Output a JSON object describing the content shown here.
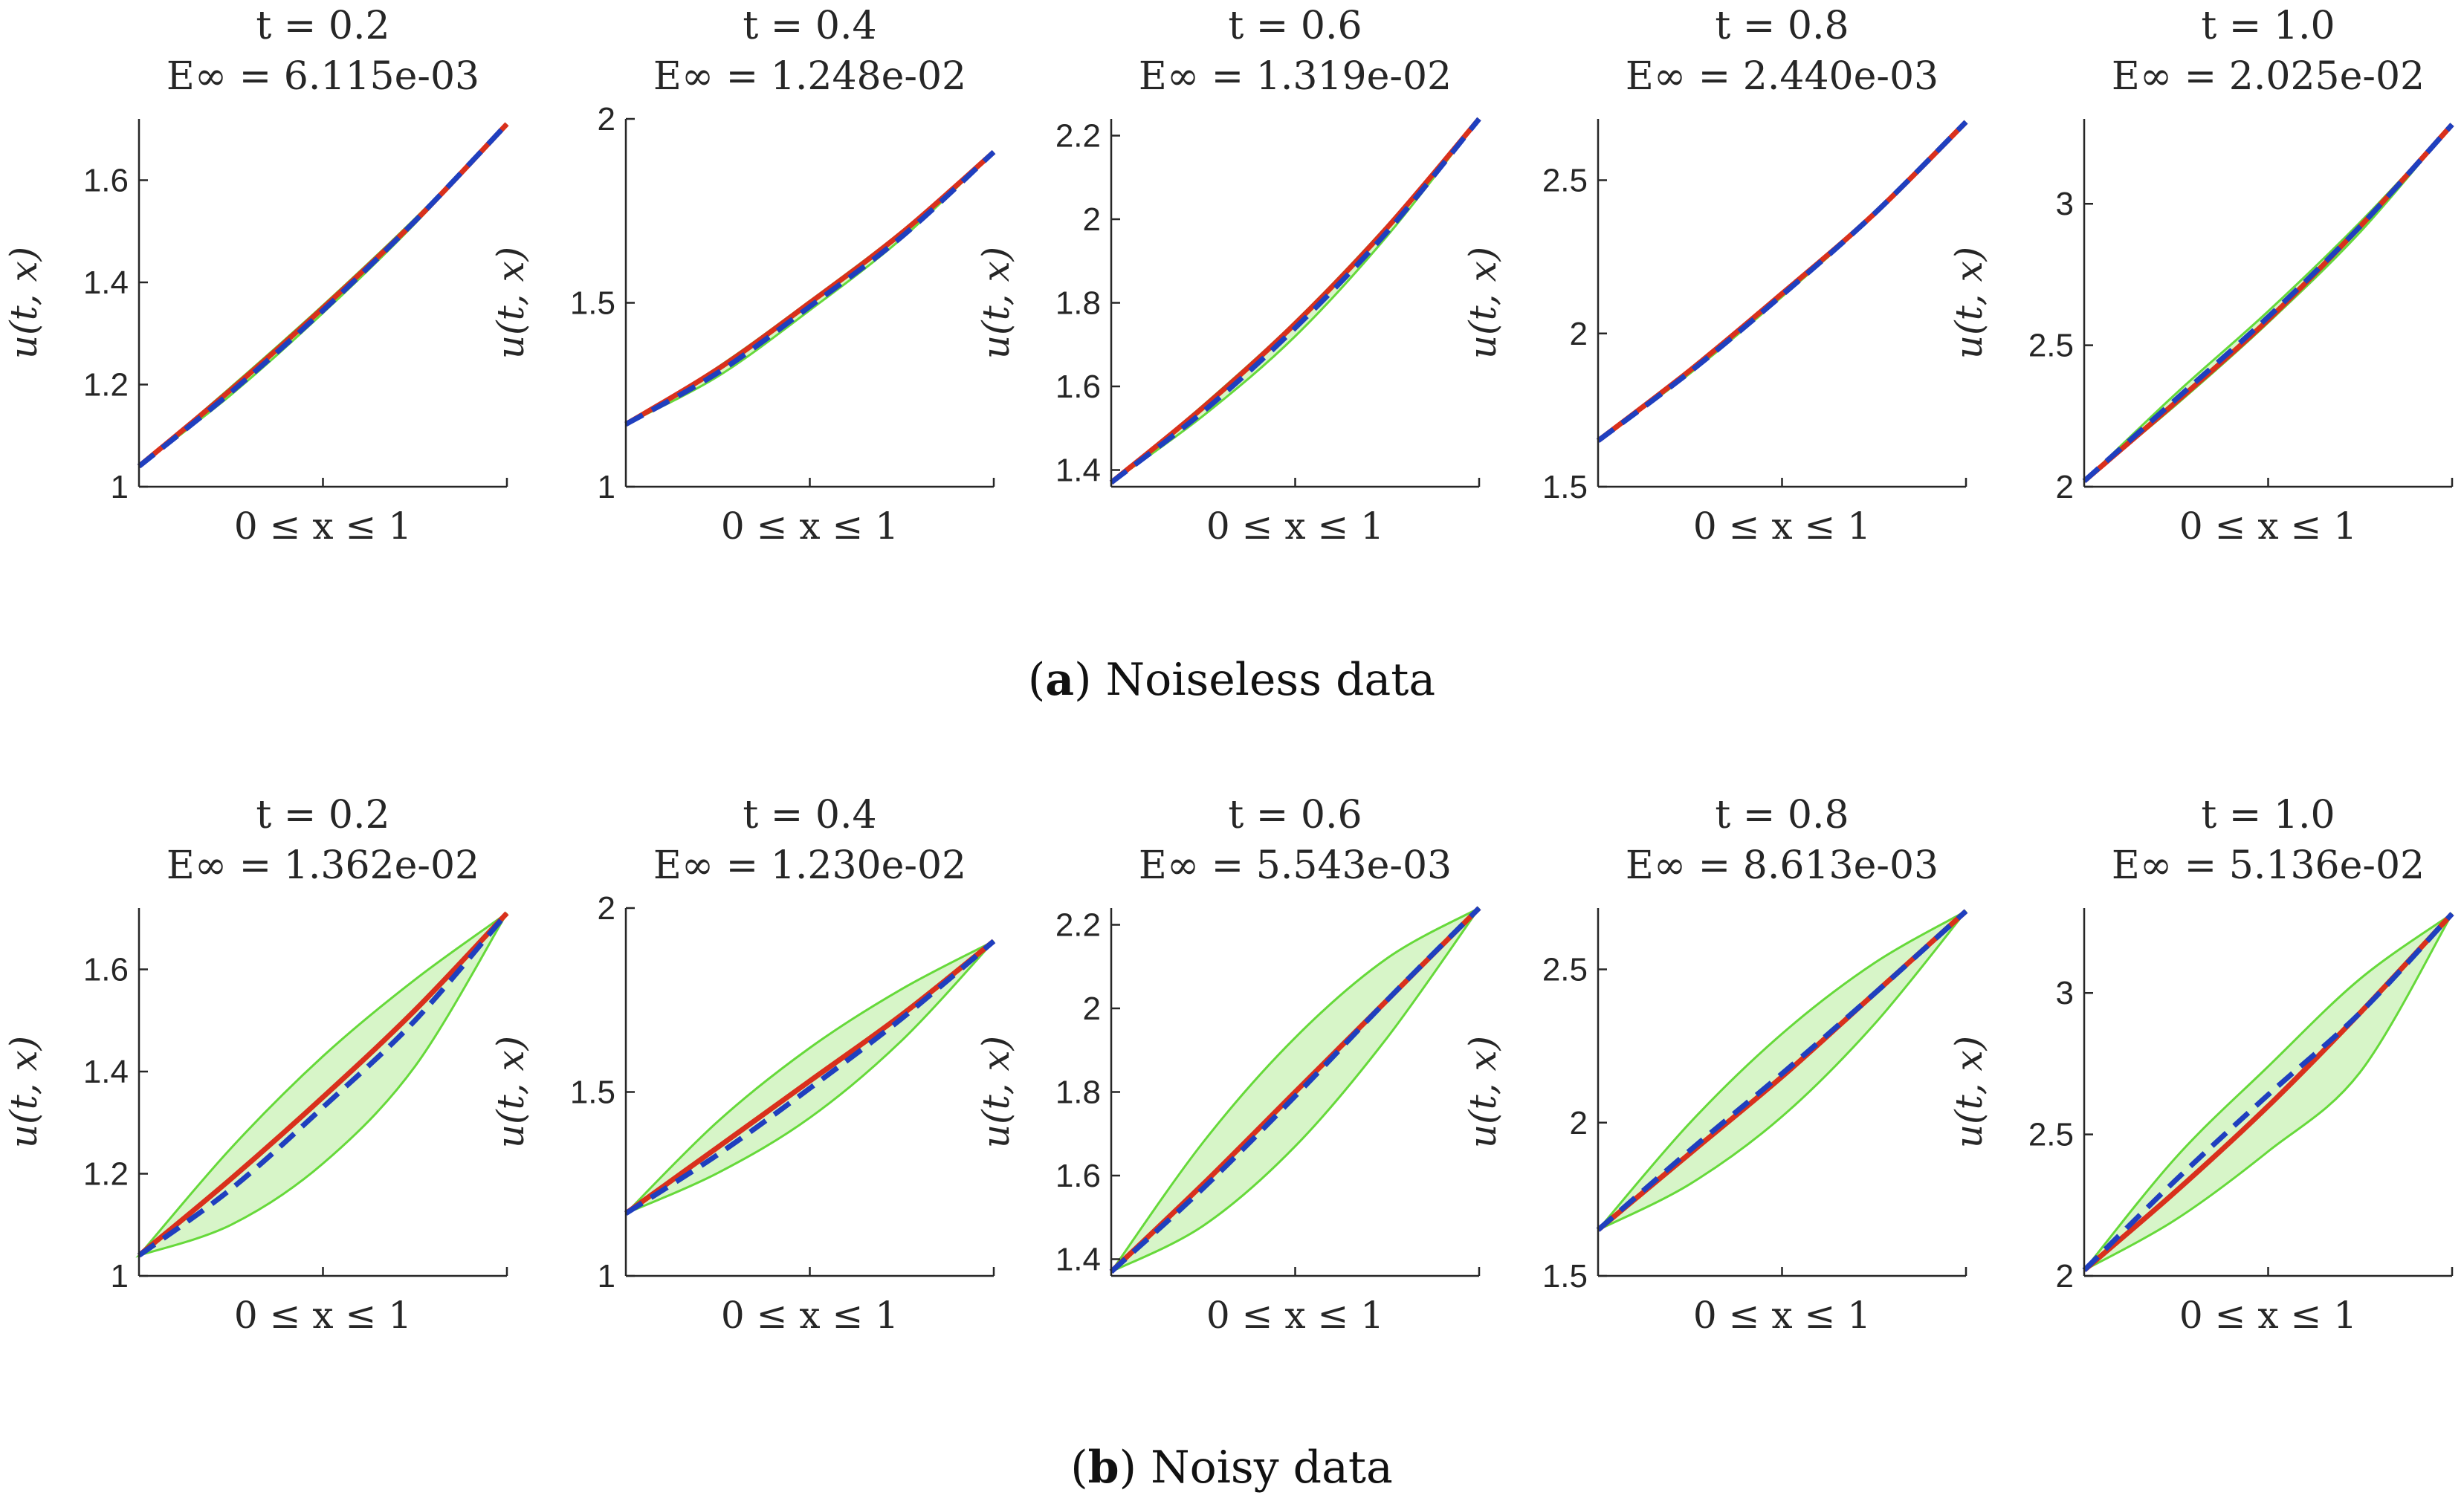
{
  "figure": {
    "ylabel": "u(t, x)",
    "xlabel": "0 ≤ x ≤ 1",
    "colors": {
      "band_fill": "#d7f5c8",
      "band_edge": "#66d93a",
      "solution": "#d9301c",
      "mean": "#1f3fbf",
      "axis": "#262626"
    },
    "legend_note": "red solid = reference solution, blue dashed = predicted mean, green = uncertainty band"
  },
  "rows": [
    {
      "caption_label": "a",
      "caption_text": "Noiseless data",
      "panels": [
        {
          "t_label": "t = 0.2",
          "e_label": "E∞ = 6.115e-03",
          "yticks": [
            "1",
            "1.2",
            "1.4",
            "1.6"
          ]
        },
        {
          "t_label": "t = 0.4",
          "e_label": "E∞ = 1.248e-02",
          "yticks": [
            "1",
            "1.5",
            "2"
          ]
        },
        {
          "t_label": "t = 0.6",
          "e_label": "E∞ = 1.319e-02",
          "yticks": [
            "1.4",
            "1.6",
            "1.8",
            "2",
            "2.2"
          ]
        },
        {
          "t_label": "t = 0.8",
          "e_label": "E∞ = 2.440e-03",
          "yticks": [
            "1.5",
            "2",
            "2.5"
          ]
        },
        {
          "t_label": "t = 1.0",
          "e_label": "E∞ = 2.025e-02",
          "yticks": [
            "2",
            "2.5",
            "3"
          ]
        }
      ]
    },
    {
      "caption_label": "b",
      "caption_text": "Noisy data",
      "panels": [
        {
          "t_label": "t = 0.2",
          "e_label": "E∞ = 1.362e-02",
          "yticks": [
            "1",
            "1.2",
            "1.4",
            "1.6"
          ]
        },
        {
          "t_label": "t = 0.4",
          "e_label": "E∞ = 1.230e-02",
          "yticks": [
            "1",
            "1.5",
            "2"
          ]
        },
        {
          "t_label": "t = 0.6",
          "e_label": "E∞ = 5.543e-03",
          "yticks": [
            "1.4",
            "1.6",
            "1.8",
            "2",
            "2.2"
          ]
        },
        {
          "t_label": "t = 0.8",
          "e_label": "E∞ = 8.613e-03",
          "yticks": [
            "1.5",
            "2",
            "2.5"
          ]
        },
        {
          "t_label": "t = 1.0",
          "e_label": "E∞ = 5.136e-02",
          "yticks": [
            "2",
            "2.5",
            "3"
          ]
        }
      ]
    }
  ],
  "chart_data": [
    {
      "type": "line",
      "title": "t = 0.2, E∞ = 6.115e-03",
      "xlabel": "0 ≤ x ≤ 1",
      "ylabel": "u(t, x)",
      "xlim": [
        0,
        1
      ],
      "ylim": [
        1,
        1.72
      ],
      "yticks": [
        1,
        1.2,
        1.4,
        1.6
      ],
      "x": [
        0,
        0.25,
        0.5,
        0.75,
        1.0
      ],
      "series": [
        {
          "name": "exact",
          "values": [
            1.04,
            1.19,
            1.35,
            1.52,
            1.71
          ]
        },
        {
          "name": "mean",
          "values": [
            1.04,
            1.185,
            1.345,
            1.52,
            1.71
          ]
        }
      ],
      "band": {
        "lower": [
          1.04,
          1.18,
          1.34,
          1.515,
          1.71
        ],
        "upper": [
          1.04,
          1.195,
          1.355,
          1.525,
          1.71
        ]
      }
    },
    {
      "type": "line",
      "title": "t = 0.4, E∞ = 1.248e-02",
      "xlabel": "0 ≤ x ≤ 1",
      "ylabel": "u(t, x)",
      "xlim": [
        0,
        1
      ],
      "ylim": [
        1,
        2
      ],
      "yticks": [
        1,
        1.5,
        2
      ],
      "x": [
        0,
        0.25,
        0.5,
        0.75,
        1.0
      ],
      "series": [
        {
          "name": "exact",
          "values": [
            1.17,
            1.32,
            1.5,
            1.69,
            1.91
          ]
        },
        {
          "name": "mean",
          "values": [
            1.17,
            1.31,
            1.49,
            1.68,
            1.91
          ]
        }
      ],
      "band": {
        "lower": [
          1.17,
          1.3,
          1.48,
          1.675,
          1.91
        ],
        "upper": [
          1.17,
          1.325,
          1.505,
          1.695,
          1.91
        ]
      }
    },
    {
      "type": "line",
      "title": "t = 0.6, E∞ = 1.319e-02",
      "xlabel": "0 ≤ x ≤ 1",
      "ylabel": "u(t, x)",
      "xlim": [
        0,
        1
      ],
      "ylim": [
        1.36,
        2.24
      ],
      "yticks": [
        1.4,
        1.6,
        1.8,
        2,
        2.2
      ],
      "x": [
        0,
        0.25,
        0.5,
        0.75,
        1.0
      ],
      "series": [
        {
          "name": "exact",
          "values": [
            1.37,
            1.55,
            1.75,
            1.98,
            2.24
          ]
        },
        {
          "name": "mean",
          "values": [
            1.37,
            1.54,
            1.74,
            1.97,
            2.24
          ]
        }
      ],
      "band": {
        "lower": [
          1.37,
          1.53,
          1.72,
          1.96,
          2.24
        ],
        "upper": [
          1.37,
          1.555,
          1.755,
          1.985,
          2.24
        ]
      }
    },
    {
      "type": "line",
      "title": "t = 0.8, E∞ = 2.440e-03",
      "xlabel": "0 ≤ x ≤ 1",
      "ylabel": "u(t, x)",
      "xlim": [
        0,
        1
      ],
      "ylim": [
        1.5,
        2.7
      ],
      "yticks": [
        1.5,
        2,
        2.5
      ],
      "x": [
        0,
        0.25,
        0.5,
        0.75,
        1.0
      ],
      "series": [
        {
          "name": "exact",
          "values": [
            1.65,
            1.88,
            2.13,
            2.39,
            2.69
          ]
        },
        {
          "name": "mean",
          "values": [
            1.65,
            1.875,
            2.125,
            2.39,
            2.69
          ]
        }
      ],
      "band": {
        "lower": [
          1.65,
          1.87,
          2.12,
          2.385,
          2.69
        ],
        "upper": [
          1.65,
          1.885,
          2.135,
          2.395,
          2.69
        ]
      }
    },
    {
      "type": "line",
      "title": "t = 1.0, E∞ = 2.025e-02",
      "xlabel": "0 ≤ x ≤ 1",
      "ylabel": "u(t, x)",
      "xlim": [
        0,
        1
      ],
      "ylim": [
        2,
        3.3
      ],
      "yticks": [
        2,
        2.5,
        3
      ],
      "x": [
        0,
        0.25,
        0.5,
        0.75,
        1.0
      ],
      "series": [
        {
          "name": "exact",
          "values": [
            2.02,
            2.3,
            2.59,
            2.92,
            3.28
          ]
        },
        {
          "name": "mean",
          "values": [
            2.02,
            2.31,
            2.6,
            2.92,
            3.28
          ]
        }
      ],
      "band": {
        "lower": [
          2.02,
          2.29,
          2.58,
          2.9,
          3.28
        ],
        "upper": [
          2.02,
          2.33,
          2.62,
          2.935,
          3.28
        ]
      }
    },
    {
      "type": "line",
      "title": "t = 0.2, E∞ = 1.362e-02",
      "xlabel": "0 ≤ x ≤ 1",
      "ylabel": "u(t, x)",
      "xlim": [
        0,
        1
      ],
      "ylim": [
        1,
        1.72
      ],
      "yticks": [
        1,
        1.2,
        1.4,
        1.6
      ],
      "x": [
        0,
        0.25,
        0.5,
        0.75,
        1.0
      ],
      "series": [
        {
          "name": "exact",
          "values": [
            1.04,
            1.19,
            1.35,
            1.52,
            1.71
          ]
        },
        {
          "name": "mean",
          "values": [
            1.04,
            1.17,
            1.33,
            1.5,
            1.71
          ]
        }
      ],
      "band": {
        "lower": [
          1.04,
          1.1,
          1.22,
          1.41,
          1.71
        ],
        "upper": [
          1.04,
          1.25,
          1.43,
          1.58,
          1.71
        ]
      }
    },
    {
      "type": "line",
      "title": "t = 0.4, E∞ = 1.230e-02",
      "xlabel": "0 ≤ x ≤ 1",
      "ylabel": "u(t, x)",
      "xlim": [
        0,
        1
      ],
      "ylim": [
        1,
        2
      ],
      "yticks": [
        1,
        1.5,
        2
      ],
      "x": [
        0,
        0.25,
        0.5,
        0.75,
        1.0
      ],
      "series": [
        {
          "name": "exact",
          "values": [
            1.17,
            1.35,
            1.53,
            1.71,
            1.91
          ]
        },
        {
          "name": "mean",
          "values": [
            1.17,
            1.33,
            1.51,
            1.7,
            1.91
          ]
        }
      ],
      "band": {
        "lower": [
          1.17,
          1.28,
          1.43,
          1.64,
          1.91
        ],
        "upper": [
          1.17,
          1.42,
          1.62,
          1.78,
          1.91
        ]
      }
    },
    {
      "type": "line",
      "title": "t = 0.6, E∞ = 5.543e-03",
      "xlabel": "0 ≤ x ≤ 1",
      "ylabel": "u(t, x)",
      "xlim": [
        0,
        1
      ],
      "ylim": [
        1.36,
        2.24
      ],
      "yticks": [
        1.4,
        1.6,
        1.8,
        2,
        2.2
      ],
      "x": [
        0,
        0.25,
        0.5,
        0.75,
        1.0
      ],
      "series": [
        {
          "name": "exact",
          "values": [
            1.37,
            1.58,
            1.8,
            2.02,
            2.24
          ]
        },
        {
          "name": "mean",
          "values": [
            1.37,
            1.57,
            1.79,
            2.02,
            2.24
          ]
        }
      ],
      "band": {
        "lower": [
          1.37,
          1.48,
          1.67,
          1.93,
          2.24
        ],
        "upper": [
          1.37,
          1.68,
          1.93,
          2.12,
          2.24
        ]
      }
    },
    {
      "type": "line",
      "title": "t = 0.8, E∞ = 8.613e-03",
      "xlabel": "0 ≤ x ≤ 1",
      "ylabel": "u(t, x)",
      "xlim": [
        0,
        1
      ],
      "ylim": [
        1.5,
        2.7
      ],
      "yticks": [
        1.5,
        2,
        2.5
      ],
      "x": [
        0,
        0.25,
        0.5,
        0.75,
        1.0
      ],
      "series": [
        {
          "name": "exact",
          "values": [
            1.65,
            1.9,
            2.15,
            2.42,
            2.69
          ]
        },
        {
          "name": "mean",
          "values": [
            1.65,
            1.91,
            2.16,
            2.42,
            2.69
          ]
        }
      ],
      "band": {
        "lower": [
          1.65,
          1.8,
          2.02,
          2.32,
          2.69
        ],
        "upper": [
          1.65,
          2.0,
          2.29,
          2.52,
          2.69
        ]
      }
    },
    {
      "type": "line",
      "title": "t = 1.0, E∞ = 5.136e-02",
      "xlabel": "0 ≤ x ≤ 1",
      "ylabel": "u(t, x)",
      "xlim": [
        0,
        1
      ],
      "ylim": [
        2,
        3.3
      ],
      "yticks": [
        2,
        2.5,
        3
      ],
      "x": [
        0,
        0.25,
        0.5,
        0.75,
        1.0
      ],
      "series": [
        {
          "name": "exact",
          "values": [
            2.02,
            2.3,
            2.6,
            2.93,
            3.28
          ]
        },
        {
          "name": "mean",
          "values": [
            2.02,
            2.34,
            2.64,
            2.93,
            3.28
          ]
        }
      ],
      "band": {
        "lower": [
          2.02,
          2.2,
          2.44,
          2.72,
          3.28
        ],
        "upper": [
          2.02,
          2.42,
          2.74,
          3.05,
          3.28
        ]
      }
    }
  ]
}
